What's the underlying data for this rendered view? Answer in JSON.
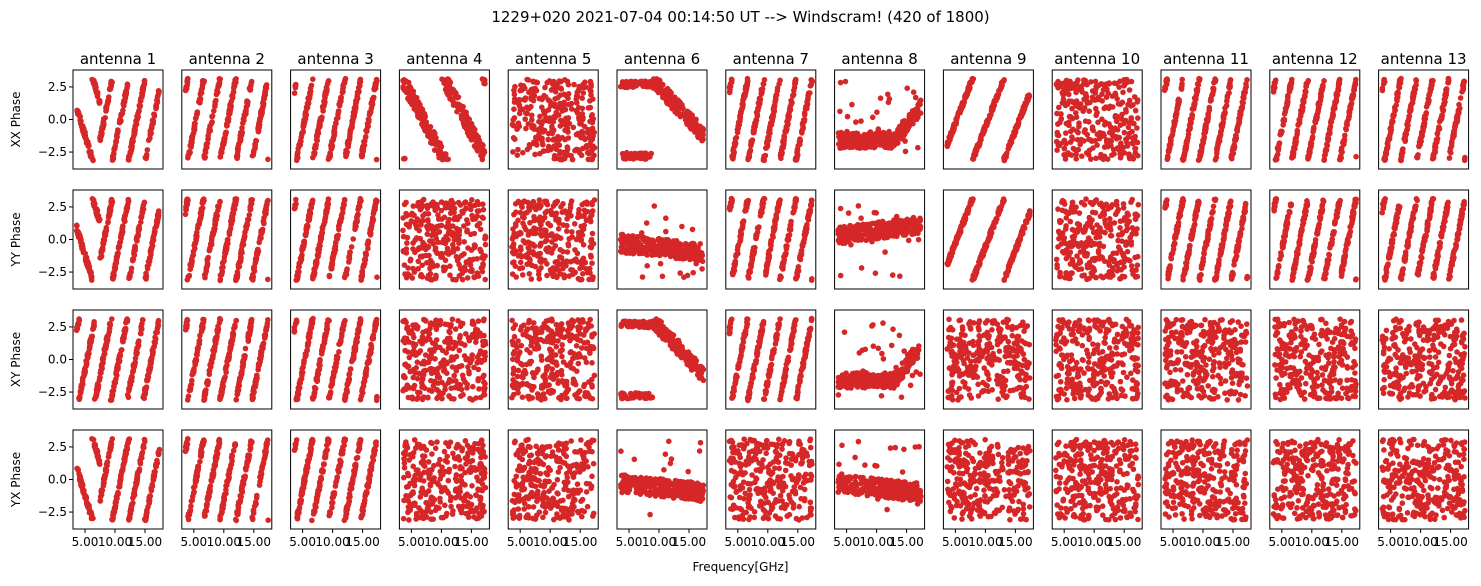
{
  "figure": {
    "title": "1229+020 2021-07-04 00:14:50 UT --> Windscram! (420 of 1800)",
    "xlabel": "Frequency[GHz]"
  },
  "chart_data": {
    "type": "scatter",
    "point_color": "#d62728",
    "columns": [
      "antenna 1",
      "antenna 2",
      "antenna 3",
      "antenna 4",
      "antenna 5",
      "antenna 6",
      "antenna 7",
      "antenna 8",
      "antenna 9",
      "antenna 10",
      "antenna 11",
      "antenna 12",
      "antenna 13"
    ],
    "rows": [
      "XX Phase",
      "YY Phase",
      "XY Phase",
      "YX Phase"
    ],
    "xlabel": "Frequency[GHz]",
    "xlim": [
      3.0,
      18.0
    ],
    "ylim": [
      -3.8,
      3.8
    ],
    "xticks": [
      5.0,
      10.0,
      15.0
    ],
    "xtick_labels": [
      "5.00",
      "10.00",
      "15.00"
    ],
    "yticks": [
      2.5,
      0.0,
      -2.5
    ],
    "ytick_labels": [
      "2.5",
      "0.0",
      "−2.5"
    ],
    "patterns": [
      [
        "V-stripes",
        "stripes",
        "stripes",
        "diagonal",
        "random",
        "arc",
        "stripes",
        "flat-low",
        "steep-stripes",
        "random",
        "stripes",
        "stripes",
        "stripes"
      ],
      [
        "V-stripes",
        "stripes",
        "stripes",
        "random",
        "random",
        "flat-mid",
        "stripes",
        "flat-mid-rise",
        "steep-stripes",
        "random",
        "stripes",
        "stripes",
        "stripes"
      ],
      [
        "stripes",
        "stripes",
        "stripes",
        "random",
        "random",
        "arc",
        "stripes",
        "flat-low",
        "random",
        "random",
        "random",
        "random",
        "random"
      ],
      [
        "V-stripes",
        "stripes",
        "stripes",
        "random",
        "random",
        "flat-mid",
        "random",
        "flat-mid",
        "random",
        "random",
        "random",
        "random",
        "random"
      ]
    ]
  }
}
